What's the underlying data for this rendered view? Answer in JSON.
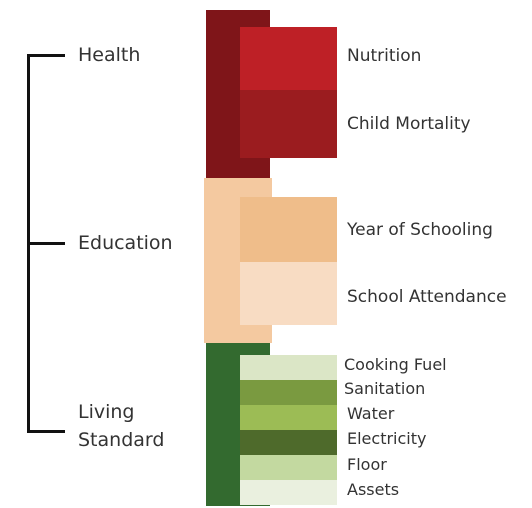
{
  "dimensions": [
    {
      "label": "Health",
      "indicators": [
        "Nutrition",
        "Child Mortality"
      ]
    },
    {
      "label": "Education",
      "indicators": [
        "Year of Schooling",
        "School Attendance"
      ]
    },
    {
      "label": "Living Standard",
      "indicators": [
        "Cooking Fuel",
        "Sanitation",
        "Water",
        "Electricity",
        "Floor",
        "Assets"
      ]
    }
  ]
}
